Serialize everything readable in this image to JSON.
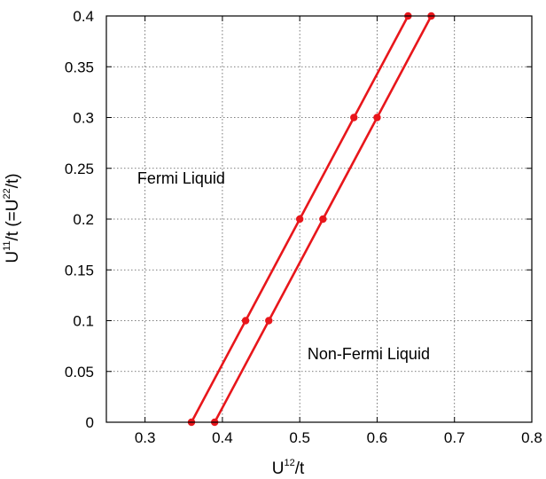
{
  "chart_data": {
    "type": "line",
    "x_axis": {
      "label_base": "U",
      "label_sup": "12",
      "label_tail": "/t",
      "range": [
        0.25,
        0.8
      ],
      "ticks": [
        0.3,
        0.4,
        0.5,
        0.6,
        0.7,
        0.8
      ],
      "tick_labels": [
        "0.3",
        "0.4",
        "0.5",
        "0.6",
        "0.7",
        "0.8"
      ]
    },
    "y_axis": {
      "label_part1": "U",
      "label_sup1": "11",
      "label_part2": "/t (=U",
      "label_sup2": "22",
      "label_part3": "/t)",
      "range": [
        0,
        0.4
      ],
      "ticks": [
        0,
        0.05,
        0.1,
        0.15,
        0.2,
        0.25,
        0.3,
        0.35,
        0.4
      ],
      "tick_labels": [
        "0",
        "0.05",
        "0.1",
        "0.15",
        "0.2",
        "0.25",
        "0.3",
        "0.35",
        "0.4"
      ]
    },
    "grid": true,
    "grid_style": "dotted",
    "series": [
      {
        "color": "#e8161b",
        "x": [
          0.36,
          0.43,
          0.5,
          0.57,
          0.64
        ],
        "y": [
          0,
          0.1,
          0.2,
          0.3,
          0.4
        ]
      },
      {
        "color": "#e8161b",
        "x": [
          0.39,
          0.46,
          0.53,
          0.6,
          0.67
        ],
        "y": [
          0,
          0.1,
          0.2,
          0.3,
          0.4
        ]
      }
    ],
    "annotations": [
      {
        "text": "Fermi Liquid",
        "x": 0.29,
        "y": 0.235
      },
      {
        "text": "Non-Fermi Liquid",
        "x": 0.51,
        "y": 0.062
      }
    ]
  }
}
